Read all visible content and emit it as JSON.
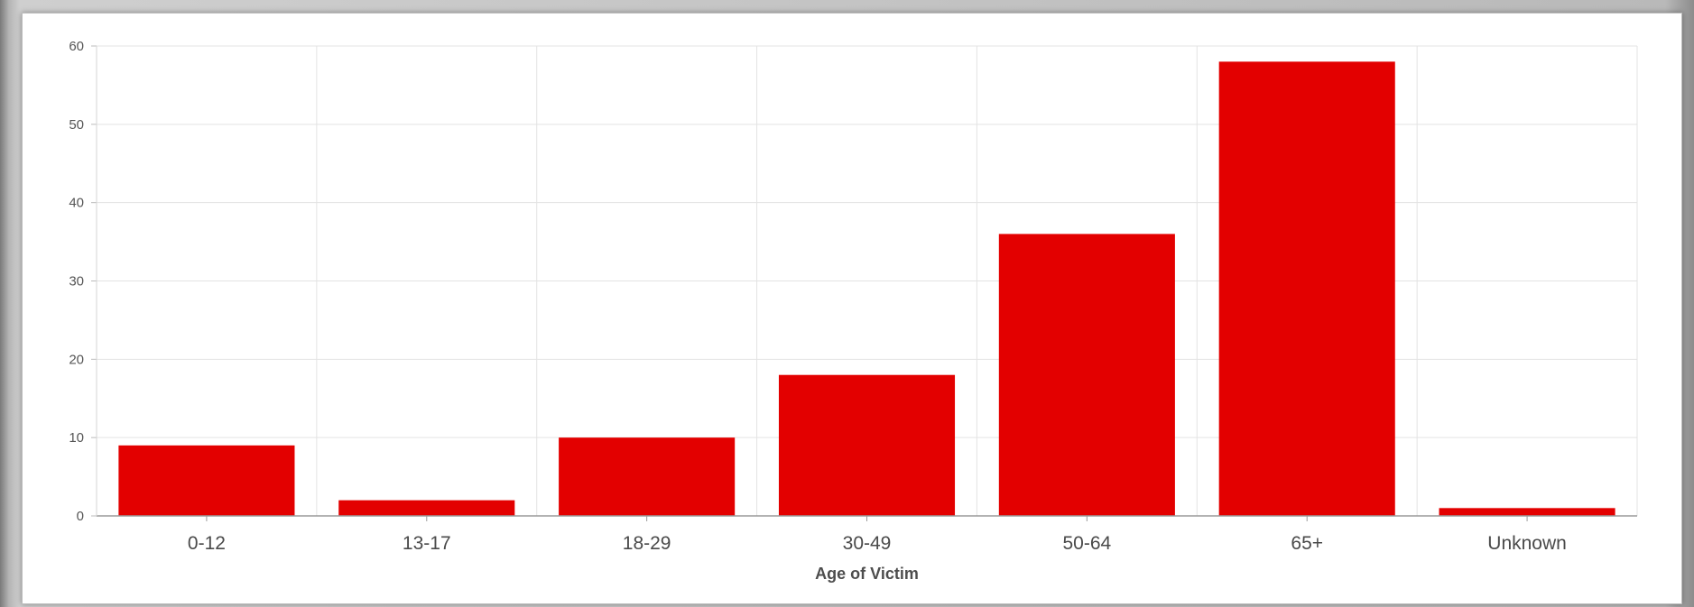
{
  "chart_data": {
    "type": "bar",
    "categories": [
      "0-12",
      "13-17",
      "18-29",
      "30-49",
      "50-64",
      "65+",
      "Unknown"
    ],
    "values": [
      9,
      2,
      10,
      18,
      36,
      58,
      1
    ],
    "xlabel": "Age of Victim",
    "ylabel": "",
    "ylim": [
      0,
      60
    ],
    "yticks": [
      0,
      10,
      20,
      30,
      40,
      50,
      60
    ],
    "grid": true,
    "bar_color": "#e30000"
  }
}
